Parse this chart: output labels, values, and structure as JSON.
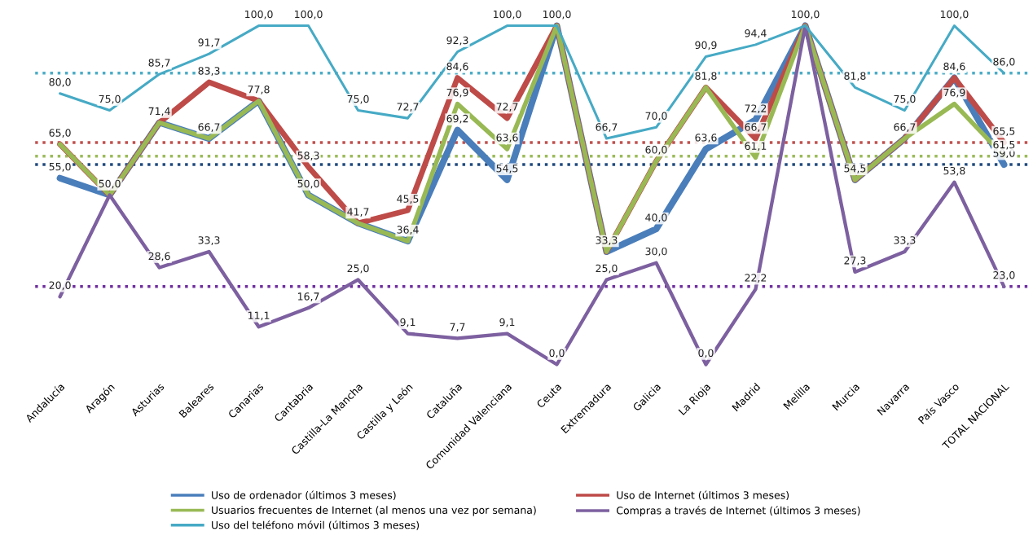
{
  "chart_data": {
    "type": "line",
    "categories": [
      "Andalucía",
      "Aragón",
      "Asturias",
      "Baleares",
      "Canarias",
      "Cantabria",
      "Castilla-La Mancha",
      "Castilla y León",
      "Cataluña",
      "Comunidad Valenciana",
      "Ceuta",
      "Extremadura",
      "Galicia",
      "La Rioja",
      "Madrid",
      "Melilla",
      "Murcia",
      "Navarra",
      "País Vasco",
      "TOTAL NACIONAL"
    ],
    "series": [
      {
        "name": "Uso de ordenador (últimos 3 meses)",
        "color": "#4a7ebb",
        "values": [
          55.0,
          50.0,
          71.4,
          66.7,
          77.8,
          50.0,
          41.7,
          36.4,
          69.2,
          54.5,
          100.0,
          33.3,
          40.0,
          63.6,
          72.2,
          100.0,
          54.5,
          66.7,
          84.6,
          59.0
        ],
        "value_labels": [
          "55,0",
          "50,0",
          null,
          null,
          null,
          null,
          null,
          null,
          "69,2",
          "54,5",
          null,
          null,
          "40,0",
          "63,6",
          "72,2",
          null,
          null,
          null,
          null,
          "59,0"
        ]
      },
      {
        "name": "Uso de Internet (últimos 3 meses)",
        "color": "#be4b48",
        "values": [
          65.0,
          50.0,
          71.4,
          83.3,
          77.8,
          58.3,
          41.7,
          45.5,
          84.6,
          72.7,
          100.0,
          33.3,
          60.0,
          81.8,
          66.7,
          100.0,
          54.5,
          66.7,
          84.6,
          65.5
        ],
        "value_labels": [
          null,
          null,
          null,
          "83,3",
          null,
          "58,3",
          null,
          "45,5",
          "84,6",
          "72,7",
          null,
          null,
          null,
          null,
          "66,7",
          null,
          null,
          null,
          "84,6",
          "65,5"
        ]
      },
      {
        "name": "Usuarios frecuentes de Internet (al menos una vez por semana)",
        "color": "#98b954",
        "values": [
          65.0,
          50.0,
          71.4,
          66.7,
          77.8,
          50.0,
          41.7,
          36.4,
          76.9,
          63.6,
          100.0,
          33.3,
          60.0,
          81.8,
          61.1,
          100.0,
          54.5,
          66.7,
          76.9,
          61.5
        ],
        "value_labels": [
          "65,0",
          null,
          "71,4",
          "66,7",
          "77,8",
          "50,0",
          "41,7",
          "36,4",
          "76,9",
          "63,6",
          "100,0",
          "33,3",
          "60,0",
          "81,8",
          "61,1",
          "100,0",
          "54,5",
          "66,7",
          "76,9",
          "61,5"
        ]
      },
      {
        "name": "Compras a través de Internet (últimos 3 meses)",
        "color": "#7d60a0",
        "values": [
          20.0,
          50.0,
          28.6,
          33.3,
          11.1,
          16.7,
          25.0,
          9.1,
          7.7,
          9.1,
          0.0,
          25.0,
          30.0,
          0.0,
          22.2,
          100.0,
          27.3,
          33.3,
          53.8,
          23.0
        ],
        "value_labels": [
          "20,0",
          null,
          "28,6",
          "33,3",
          "11,1",
          "16,7",
          "25,0",
          "9,1",
          "7,7",
          "9,1",
          "0,0",
          "25,0",
          "30,0",
          "0,0",
          "22,2",
          null,
          "27,3",
          "33,3",
          "53,8",
          "23,0"
        ]
      },
      {
        "name": "Uso del teléfono móvil (últimos 3 meses)",
        "color": "#46aac5",
        "values": [
          80.0,
          75.0,
          85.7,
          91.7,
          100.0,
          100.0,
          75.0,
          72.7,
          92.3,
          100.0,
          100.0,
          66.7,
          70.0,
          90.9,
          94.4,
          100.0,
          81.8,
          75.0,
          100.0,
          86.0
        ],
        "value_labels": [
          "80,0",
          "75,0",
          "85,7",
          "91,7",
          "100,0",
          "100,0",
          "75,0",
          "72,7",
          "92,3",
          "100,0",
          null,
          "66,7",
          "70,0",
          "90,9",
          "94,4",
          null,
          "81,8",
          "75,0",
          "100,0",
          "86,0"
        ]
      }
    ],
    "ref_lines": [
      {
        "axis": "y",
        "value": 86.0,
        "color": "#4bacc6",
        "line_style": "dotted"
      },
      {
        "axis": "y",
        "value": 65.5,
        "color": "#c0504d",
        "line_style": "dotted"
      },
      {
        "axis": "y",
        "value": 61.5,
        "color": "#9bbb59",
        "line_style": "dotted"
      },
      {
        "axis": "y",
        "value": 59.0,
        "color": "#1f497d",
        "line_style": "dotted"
      },
      {
        "axis": "y",
        "value": 23.0,
        "color": "#7030a0",
        "line_style": "dotted"
      }
    ],
    "legend": "bottom",
    "grid": false,
    "marker": "none",
    "line_style": "solid"
  }
}
